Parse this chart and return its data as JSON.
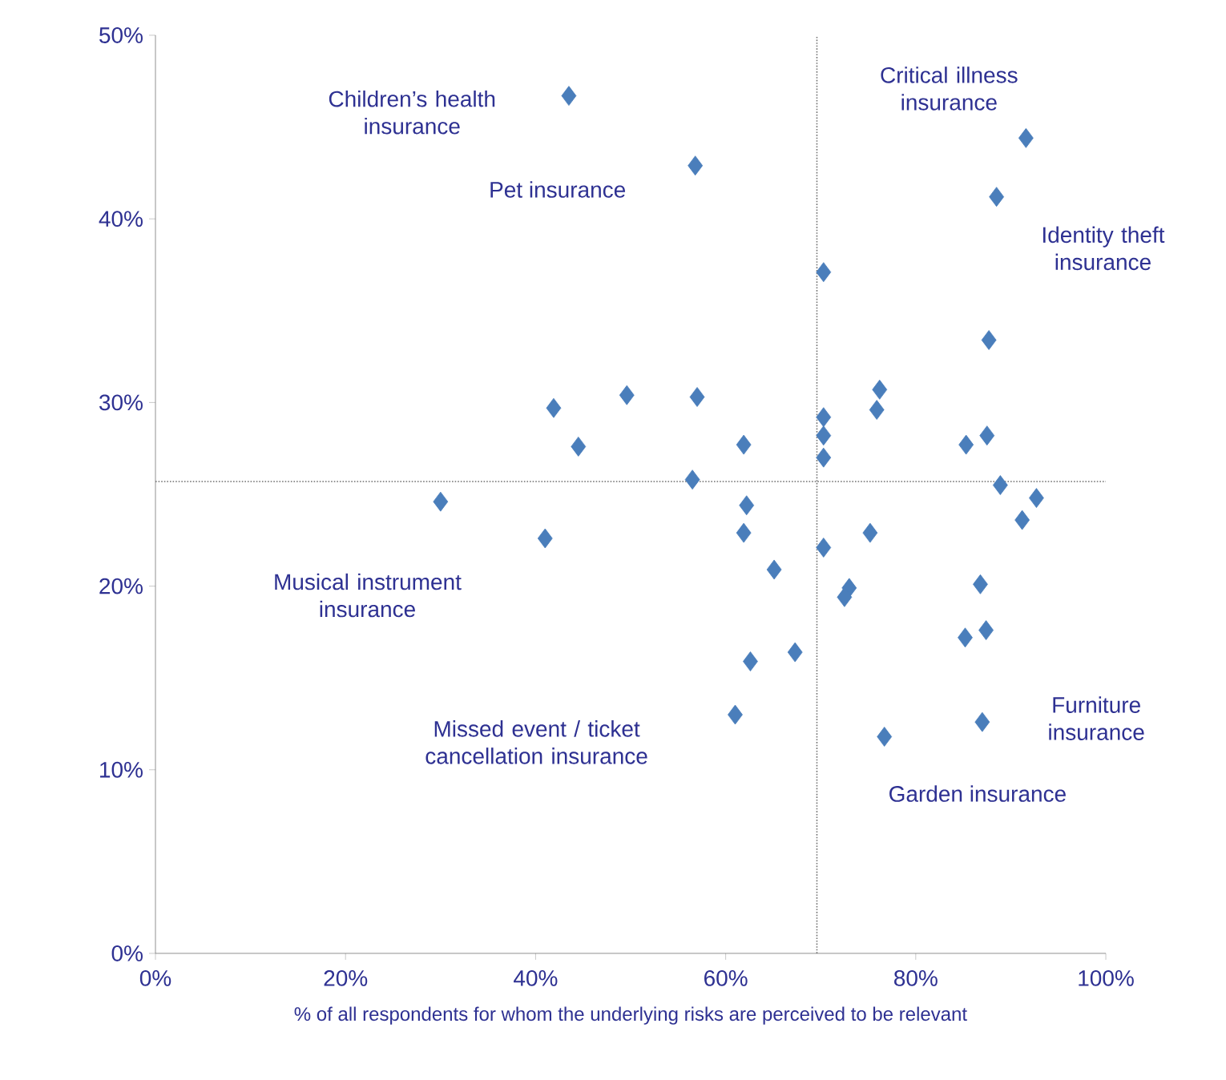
{
  "chart_data": {
    "type": "scatter",
    "xlabel": "% of all respondents for whom the underlying risks are perceived to be relevant",
    "x": [
      43.5,
      56.8,
      91.6,
      88.5,
      70.3,
      87.7,
      41.9,
      49.6,
      57.0,
      76.2,
      75.9,
      70.3,
      70.3,
      70.3,
      44.5,
      61.9,
      85.3,
      87.5,
      56.5,
      88.9,
      92.7,
      91.2,
      30.0,
      62.2,
      41.0,
      61.9,
      75.2,
      70.3,
      65.1,
      73.0,
      72.5,
      86.8,
      85.2,
      87.4,
      62.6,
      67.3,
      61.0,
      76.7,
      87.0
    ],
    "values": [
      46.7,
      42.9,
      44.4,
      41.2,
      37.1,
      33.4,
      29.7,
      30.4,
      30.3,
      30.7,
      29.6,
      29.2,
      28.2,
      27.0,
      27.6,
      27.7,
      27.7,
      28.2,
      25.8,
      25.5,
      24.8,
      23.6,
      24.6,
      24.4,
      22.6,
      22.9,
      22.9,
      22.1,
      20.9,
      19.9,
      19.4,
      20.1,
      17.2,
      17.6,
      15.9,
      16.4,
      13.0,
      11.8,
      12.6
    ],
    "color": "#4a7ebb",
    "marker": "diamond",
    "xlim": [
      0,
      100
    ],
    "ylim": [
      0,
      50
    ],
    "xticks": [
      {
        "value": 0,
        "label": "0%"
      },
      {
        "value": 20,
        "label": "20%"
      },
      {
        "value": 40,
        "label": "40%"
      },
      {
        "value": 60,
        "label": "60%"
      },
      {
        "value": 80,
        "label": "80%"
      },
      {
        "value": 100,
        "label": "100%"
      }
    ],
    "yticks": [
      {
        "value": 0,
        "label": "0%"
      },
      {
        "value": 10,
        "label": "10%"
      },
      {
        "value": 20,
        "label": "20%"
      },
      {
        "value": 30,
        "label": "30%"
      },
      {
        "value": 40,
        "label": "40%"
      },
      {
        "value": 50,
        "label": "50%"
      }
    ],
    "ref_lines": [
      {
        "axis": "x",
        "value": 69.6,
        "color": "#707070",
        "line_style": "dotted"
      },
      {
        "axis": "y",
        "value": 25.7,
        "color": "#707070",
        "line_style": "dotted"
      }
    ],
    "annotations": [
      "Children’s health insurance",
      "Pet insurance",
      "Critical illness insurance",
      "Identity theft insurance",
      "Musical instrument insurance",
      "Missed event / ticket cancellation insurance",
      "Furniture insurance",
      "Garden insurance"
    ]
  }
}
